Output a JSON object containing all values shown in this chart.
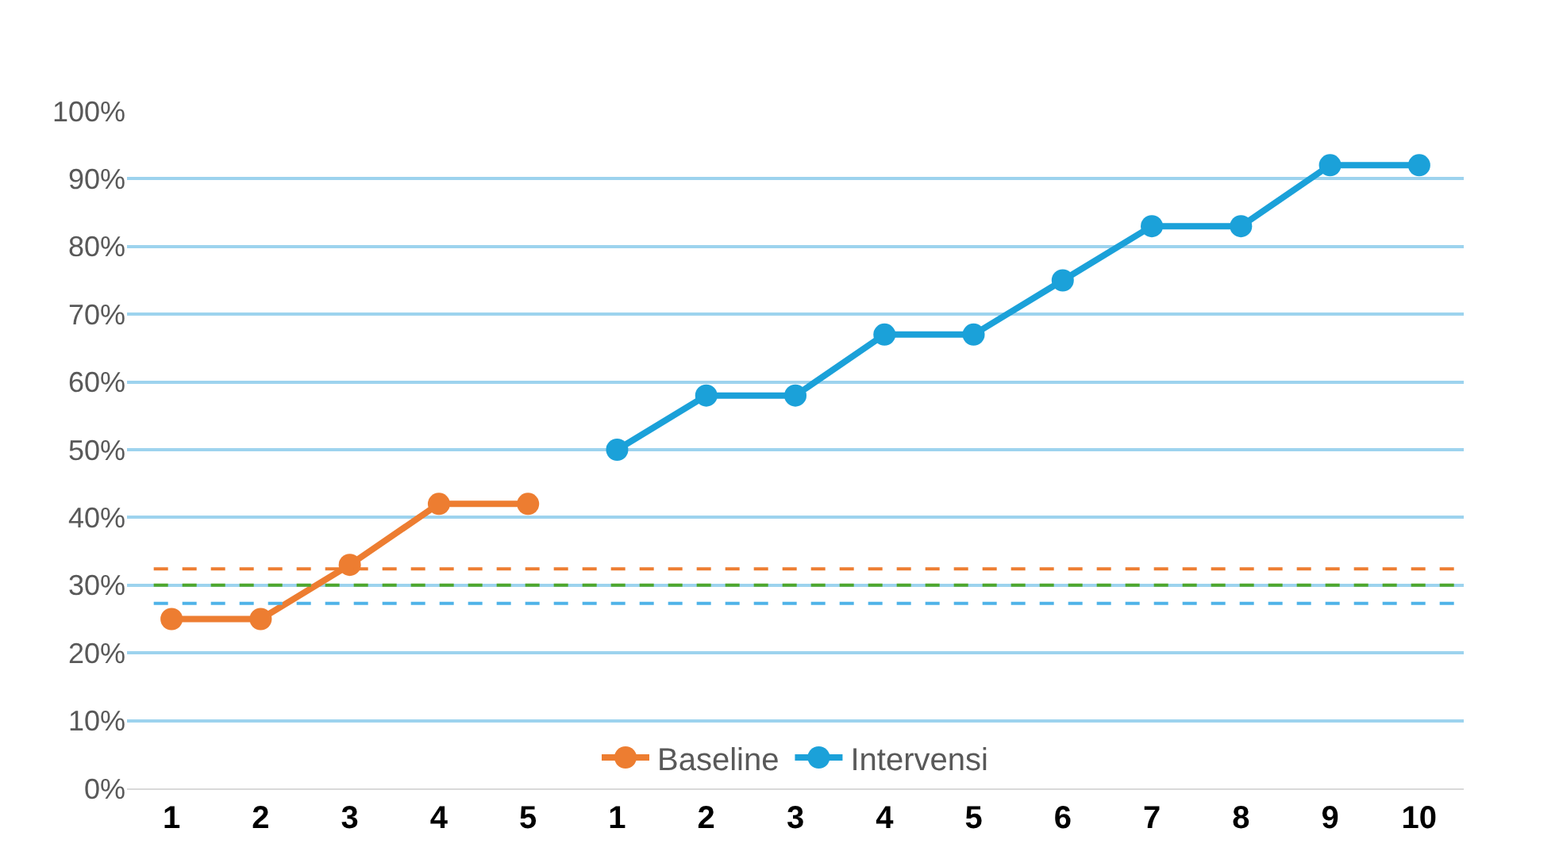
{
  "chart_data": {
    "type": "line",
    "categories": [
      "1",
      "2",
      "3",
      "4",
      "5",
      "1",
      "2",
      "3",
      "4",
      "5",
      "6",
      "7",
      "8",
      "9",
      "10"
    ],
    "series": [
      {
        "name": "Baseline",
        "color": "#ed7d31",
        "values": [
          25,
          25,
          33,
          42,
          42,
          null,
          null,
          null,
          null,
          null,
          null,
          null,
          null,
          null,
          null
        ]
      },
      {
        "name": "Intervensi",
        "color": "#1ba1d9",
        "values": [
          null,
          null,
          null,
          null,
          null,
          50,
          58,
          58,
          67,
          67,
          75,
          83,
          83,
          92,
          92
        ]
      }
    ],
    "ylim": [
      0,
      100
    ],
    "yticks": [
      {
        "value": 0,
        "label": "0%"
      },
      {
        "value": 10,
        "label": "10%"
      },
      {
        "value": 20,
        "label": "20%"
      },
      {
        "value": 30,
        "label": "30%"
      },
      {
        "value": 40,
        "label": "40%"
      },
      {
        "value": 50,
        "label": "50%"
      },
      {
        "value": 60,
        "label": "60%"
      },
      {
        "value": 70,
        "label": "70%"
      },
      {
        "value": 80,
        "label": "80%"
      },
      {
        "value": 90,
        "label": "90%"
      },
      {
        "value": 100,
        "label": "100%"
      }
    ],
    "ref_lines": [
      {
        "axis": "y",
        "value": 32.4,
        "color": "#ed7d31",
        "line_style": "dashed"
      },
      {
        "axis": "y",
        "value": 30,
        "color": "#4ea72e",
        "line_style": "dashed"
      },
      {
        "axis": "y",
        "value": 27.3,
        "color": "#4fb3e8",
        "line_style": "dashed"
      }
    ],
    "grid": "y",
    "legend": "bottom",
    "marker": "circle",
    "line_style": "solid"
  }
}
